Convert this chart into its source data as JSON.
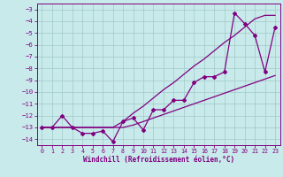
{
  "title": "",
  "xlabel": "Windchill (Refroidissement éolien,°C)",
  "bg_color": "#c8eaea",
  "line_color": "#800080",
  "grid_color": "#a0c8c8",
  "x_data": [
    0,
    1,
    2,
    3,
    4,
    5,
    6,
    7,
    8,
    9,
    10,
    11,
    12,
    13,
    14,
    15,
    16,
    17,
    18,
    19,
    20,
    21,
    22,
    23
  ],
  "y_zigzag": [
    -13,
    -13,
    -12,
    -13,
    -13.5,
    -13.5,
    -13.3,
    -14.2,
    -12.5,
    -12.2,
    -13.2,
    -11.5,
    -11.5,
    -10.7,
    -10.7,
    -9.2,
    -8.7,
    -8.7,
    -8.3,
    -3.3,
    -4.2,
    -5.2,
    -8.3,
    -4.5
  ],
  "y_top": [
    -13,
    -13,
    -13,
    -13,
    -13,
    -13,
    -13,
    -13,
    -12.5,
    -11.8,
    -11.2,
    -10.5,
    -9.8,
    -9.2,
    -8.5,
    -7.8,
    -7.2,
    -6.5,
    -5.8,
    -5.2,
    -4.5,
    -3.8,
    -3.5,
    -3.5
  ],
  "y_bot": [
    -13,
    -13,
    -13,
    -13,
    -13,
    -13,
    -13,
    -13,
    -13,
    -12.8,
    -12.5,
    -12.2,
    -11.9,
    -11.6,
    -11.3,
    -11.0,
    -10.7,
    -10.4,
    -10.1,
    -9.8,
    -9.5,
    -9.2,
    -8.9,
    -8.6
  ],
  "ylim": [
    -14.5,
    -2.5
  ],
  "xlim": [
    -0.5,
    23.5
  ],
  "yticks": [
    -14,
    -13,
    -12,
    -11,
    -10,
    -9,
    -8,
    -7,
    -6,
    -5,
    -4,
    -3
  ],
  "xticks": [
    0,
    1,
    2,
    3,
    4,
    5,
    6,
    7,
    8,
    9,
    10,
    11,
    12,
    13,
    14,
    15,
    16,
    17,
    18,
    19,
    20,
    21,
    22,
    23
  ]
}
